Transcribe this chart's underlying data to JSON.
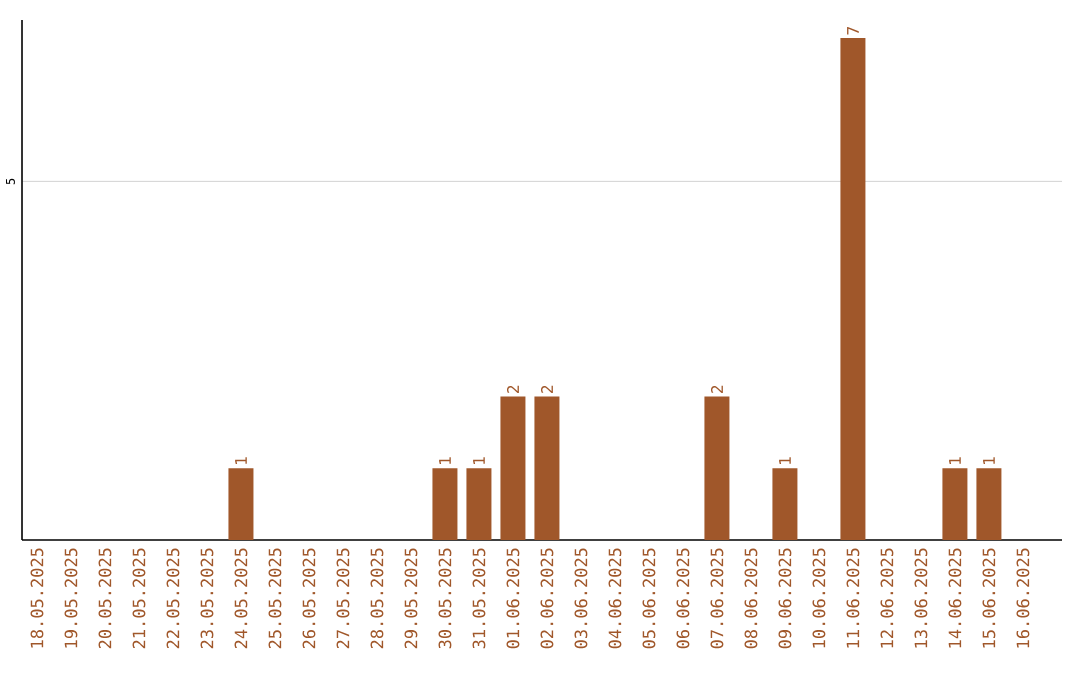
{
  "chart_data": {
    "type": "bar",
    "categories": [
      "18.05.2025",
      "19.05.2025",
      "20.05.2025",
      "21.05.2025",
      "22.05.2025",
      "23.05.2025",
      "24.05.2025",
      "25.05.2025",
      "26.05.2025",
      "27.05.2025",
      "28.05.2025",
      "29.05.2025",
      "30.05.2025",
      "31.05.2025",
      "01.06.2025",
      "02.06.2025",
      "03.06.2025",
      "04.06.2025",
      "05.06.2025",
      "06.06.2025",
      "07.06.2025",
      "08.06.2025",
      "09.06.2025",
      "10.06.2025",
      "11.06.2025",
      "12.06.2025",
      "13.06.2025",
      "14.06.2025",
      "15.06.2025",
      "16.06.2025"
    ],
    "values": [
      0,
      0,
      0,
      0,
      0,
      0,
      1,
      0,
      0,
      0,
      0,
      0,
      1,
      1,
      2,
      2,
      0,
      0,
      0,
      0,
      2,
      0,
      1,
      0,
      7,
      0,
      0,
      1,
      1,
      0
    ],
    "value_labels": [
      null,
      null,
      null,
      null,
      null,
      null,
      "1",
      null,
      null,
      null,
      null,
      null,
      "1",
      "1",
      "2",
      "2",
      null,
      null,
      null,
      null,
      "2",
      null,
      "1",
      null,
      "7",
      null,
      null,
      "1",
      "1",
      null
    ],
    "color": "#a0572a",
    "ylim": [
      0,
      7.25
    ],
    "yticks": [
      5
    ],
    "grid": "y"
  }
}
